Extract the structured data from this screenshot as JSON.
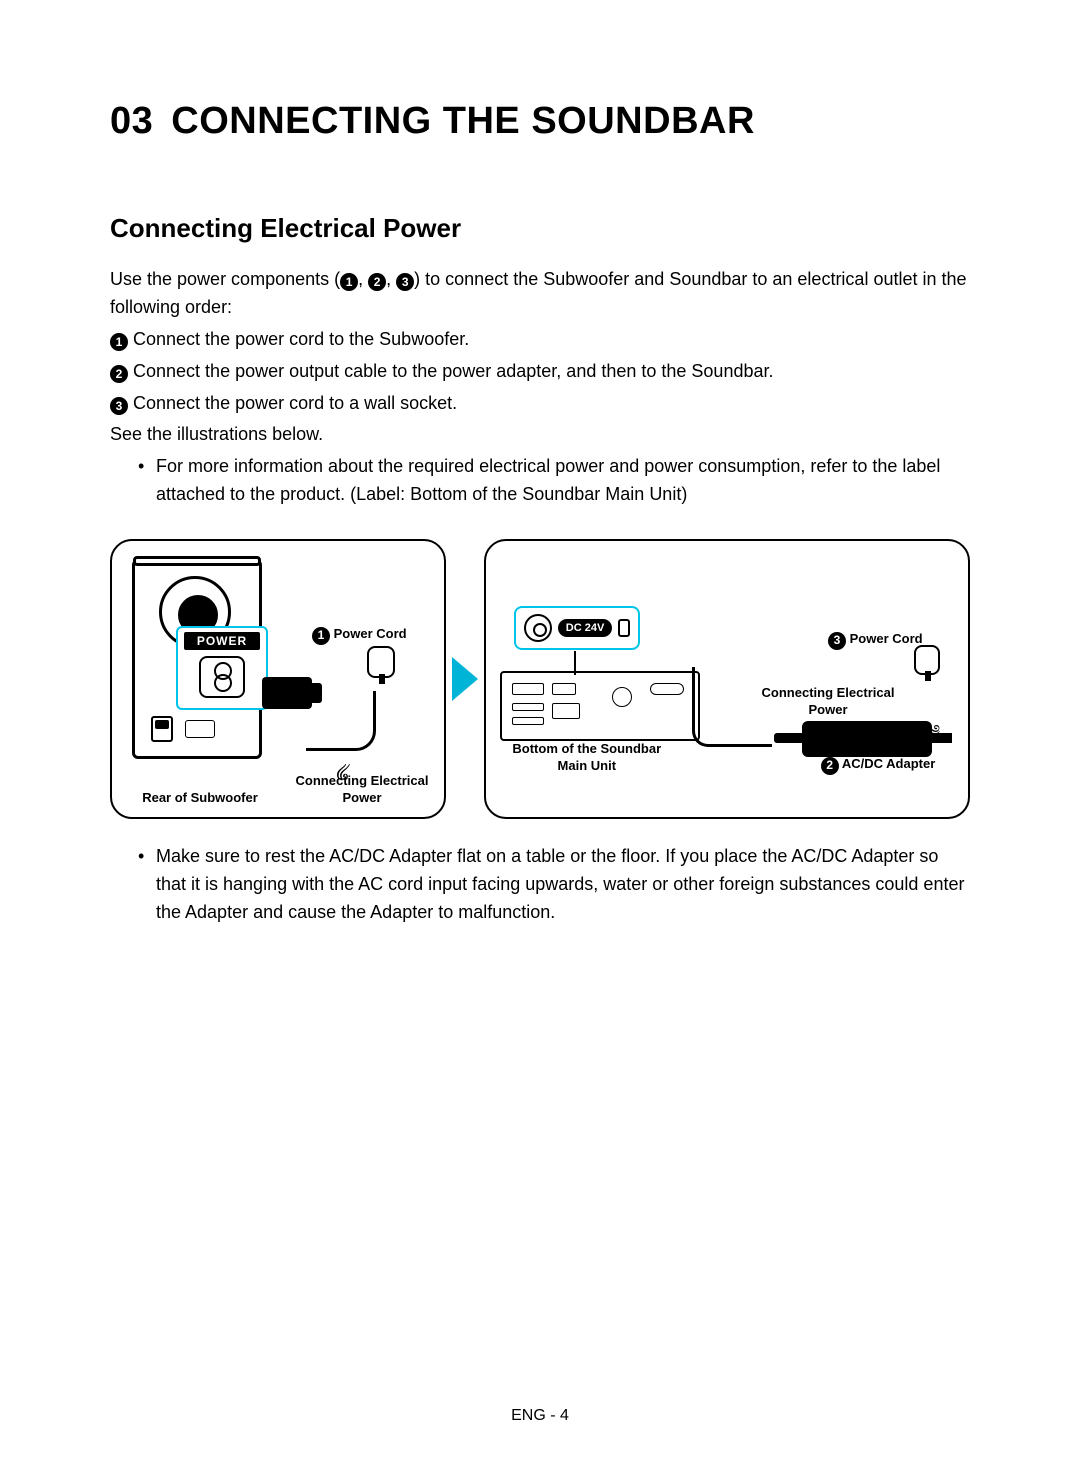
{
  "chapter": {
    "number": "03",
    "title": "CONNECTING THE SOUNDBAR"
  },
  "section": {
    "title": "Connecting Electrical Power"
  },
  "intro": {
    "before": "Use the power components (",
    "middle1": ", ",
    "middle2": ", ",
    "after": ") to connect the Subwoofer and Soundbar to an electrical outlet in the following order:"
  },
  "steps": {
    "s1": "Connect the power cord to the Subwoofer.",
    "s2": "Connect the power output cable to the power adapter, and then to the Soundbar.",
    "s3": "Connect the power cord to a wall socket."
  },
  "see": "See the illustrations below.",
  "bullets": {
    "b1": "For more information about the required electrical power and power consumption, refer to the label attached to the product. (Label: Bottom of the Soundbar Main Unit)",
    "b2": "Make sure to rest the AC/DC Adapter flat on a table or the floor. If you place the AC/DC Adapter so that it is hanging with the AC cord input facing upwards, water or other foreign substances could enter the Adapter and cause the Adapter to malfunction."
  },
  "labels": {
    "power": "POWER",
    "dc": "DC 24V",
    "powerCord": "Power Cord",
    "rearSubwoofer": "Rear of Subwoofer",
    "connectingPower": "Connecting Electrical Power",
    "bottomUnit": "Bottom of the Soundbar Main Unit",
    "adapter": "AC/DC Adapter"
  },
  "nums": {
    "n1": "1",
    "n2": "2",
    "n3": "3"
  },
  "footer": "ENG - 4",
  "colors": {
    "highlight": "#00c4e8",
    "arrow": "#00b4d8"
  }
}
